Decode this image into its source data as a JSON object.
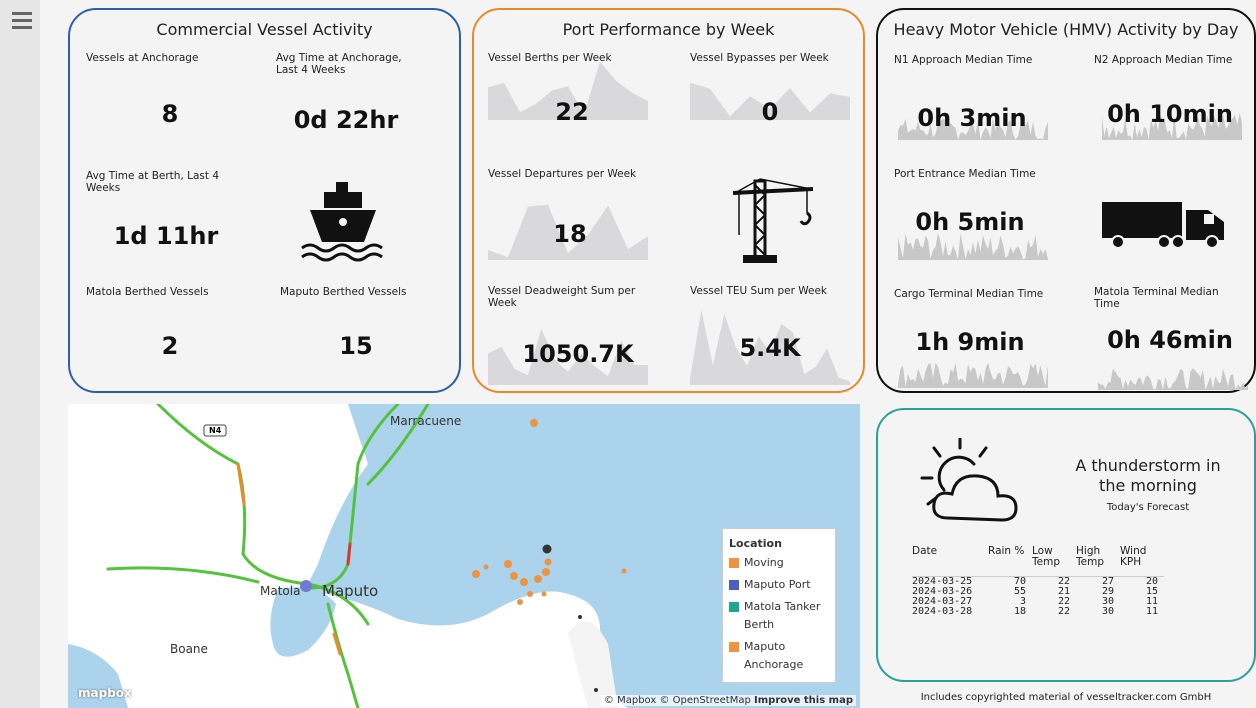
{
  "panels": [
    {
      "title": "Commercial Vessel Activity",
      "tiles": [
        {
          "label": "Vessels at Anchorage",
          "value": 8
        },
        {
          "label": "Avg Time at Anchorage, Last 4 Weeks",
          "value": "0d 22hr"
        },
        {
          "label": "Avg Time at Berth, Last 4 Weeks",
          "value": "1d 11hr"
        },
        {
          "label": "Matola Berthed Vessels",
          "value": 2
        },
        {
          "label": "Maputo Berthed Vessels",
          "value": 15
        }
      ]
    },
    {
      "title": "Port Performance by Week",
      "tiles": [
        {
          "label": "Vessel Berths per Week",
          "value": 22
        },
        {
          "label": "Vessel Bypasses per Week",
          "value": 0
        },
        {
          "label": "Vessel Departures per Week",
          "value": 18
        },
        {
          "label": "Vessel Deadweight Sum per Week",
          "value": "1050.7K"
        },
        {
          "label": "Vessel TEU Sum per Week",
          "value": "5.4K"
        }
      ]
    },
    {
      "title": "Heavy Motor Vehicle (HMV) Activity by Day",
      "tiles": [
        {
          "label": "N1 Approach Median Time",
          "value": "0h 3min"
        },
        {
          "label": "N2 Approach Median Time",
          "value": "0h 10min"
        },
        {
          "label": "Port Entrance Median Time",
          "value": "0h 5min"
        },
        {
          "label": "Cargo Terminal Median Time",
          "value": "1h 9min"
        },
        {
          "label": "Matola Terminal Median Time",
          "value": "0h 46min"
        }
      ]
    }
  ],
  "map": {
    "places": [
      "Marracuene",
      "Matola",
      "Maputo",
      "Boane"
    ],
    "road": "N4",
    "legend": {
      "title": "Location",
      "items": [
        "Moving",
        "Maputo Port",
        "Matola Tanker Berth",
        "Maputo Anchorage"
      ]
    },
    "logo": "mapbox",
    "attribution": "© Mapbox © OpenStreetMap",
    "improve": "Improve this map"
  },
  "weather": {
    "summary": "A thunderstorm in the morning",
    "subtitle": "Today's Forecast",
    "columns": [
      "Date",
      "Rain %",
      "Low Temp",
      "High Temp",
      "Wind KPH"
    ],
    "rows": [
      [
        "2024-03-25",
        70,
        22,
        27,
        20
      ],
      [
        "2024-03-26",
        55,
        21,
        29,
        15
      ],
      [
        "2024-03-27",
        3,
        22,
        30,
        11
      ],
      [
        "2024-03-28",
        18,
        22,
        30,
        11
      ]
    ],
    "footer": "Includes copyrighted material of vesseltracker.com GmbH"
  }
}
